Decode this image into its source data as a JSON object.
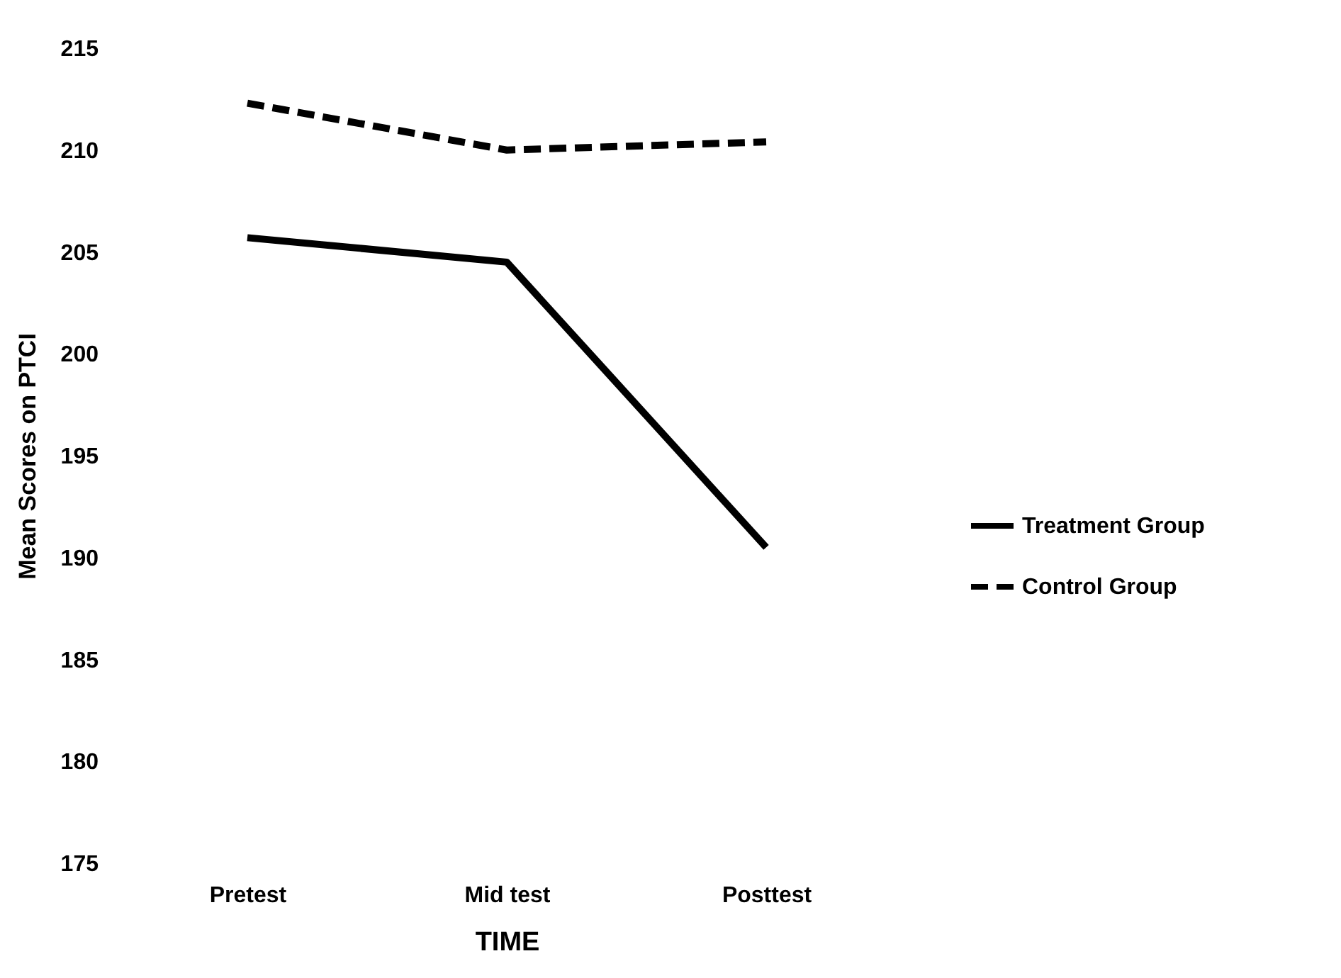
{
  "chart_data": {
    "type": "line",
    "xlabel": "TIME",
    "ylabel": "Mean Scores on PTCI",
    "categories": [
      "Pretest",
      "Mid test",
      "Posttest"
    ],
    "series": [
      {
        "name": "Treatment Group",
        "color": "#000000",
        "line_style": "solid",
        "values": [
          205.7,
          204.5,
          190.5
        ]
      },
      {
        "name": "Control Group",
        "color": "#000000",
        "line_style": "dashed",
        "values": [
          212.3,
          210.0,
          210.4
        ]
      }
    ],
    "ylim": [
      175,
      215
    ],
    "yticks": [
      175,
      180,
      185,
      190,
      195,
      200,
      205,
      210,
      215
    ],
    "grid": false,
    "legend": "right",
    "marker": "none"
  }
}
